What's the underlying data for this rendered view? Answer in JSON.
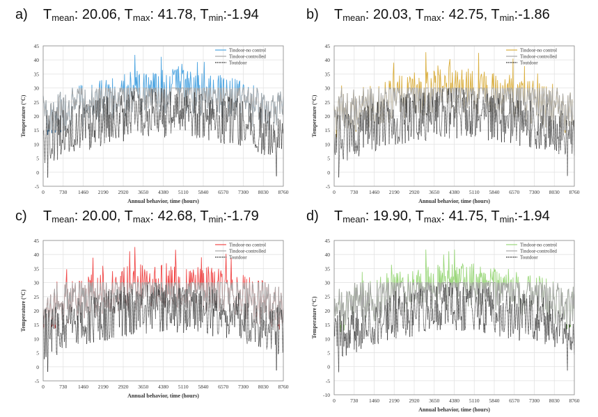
{
  "charts": [
    {
      "label": "a)",
      "stats": {
        "mean_label": "T",
        "mean_sub": "mean",
        "mean_value": ": 20.06, ",
        "max_label": "T",
        "max_sub": "max",
        "max_value": ": 41.78, ",
        "min_label": "T",
        "min_sub": "min",
        "min_value": ":-1.94"
      },
      "colors": {
        "no_control": "#4aa3e0",
        "controlled": "#a6a6a6",
        "outdoor": "#222222",
        "low_fill": "#1f4e79"
      }
    },
    {
      "label": "b)",
      "stats": {
        "mean_label": "T",
        "mean_sub": "mean",
        "mean_value": ": 20.03, ",
        "max_label": "T",
        "max_sub": "max",
        "max_value": ": 42.75, ",
        "min_label": "T",
        "min_sub": "min",
        "min_value": ":-1.86"
      },
      "colors": {
        "no_control": "#d9ad3c",
        "controlled": "#a6a6a6",
        "outdoor": "#222222",
        "low_fill": "#8a6d1c"
      }
    },
    {
      "label": "c)",
      "stats": {
        "mean_label": "T",
        "mean_sub": "mean",
        "mean_value": ": 20.00, ",
        "max_label": "T",
        "max_sub": "max",
        "max_value": ": 42.68, ",
        "min_label": "T",
        "min_sub": "min",
        "min_value": ":-1.79"
      },
      "colors": {
        "no_control": "#f04848",
        "controlled": "#a6a6a6",
        "outdoor": "#222222",
        "low_fill": "#8b1a1a"
      }
    },
    {
      "label": "d)",
      "stats": {
        "mean_label": "T",
        "mean_sub": "mean",
        "mean_value": ": 19.90, ",
        "max_label": "T",
        "max_sub": "max",
        "max_value": ": 41.75, ",
        "min_label": "T",
        "min_sub": "min",
        "min_value": ":-1.94"
      },
      "colors": {
        "no_control": "#9ad77a",
        "controlled": "#a6a6a6",
        "outdoor": "#222222",
        "low_fill": "#3e7a1e"
      }
    }
  ],
  "chart_data": [
    {
      "type": "line",
      "xlabel": "Annual behavior, time (hours)",
      "ylabel": "Temperature (°C)",
      "xlim": [
        0,
        8760
      ],
      "ylim": [
        -5,
        45
      ],
      "x_ticks": [
        "0",
        "730",
        "1460",
        "2190",
        "2920",
        "3650",
        "4380",
        "5110",
        "5840",
        "6570",
        "7300",
        "8030",
        "8760"
      ],
      "y_ticks": [
        "-5",
        "0",
        "5",
        "10",
        "15",
        "20",
        "25",
        "30",
        "35",
        "40",
        "45"
      ],
      "series": [
        {
          "name": "Tindoor-no control",
          "mean": 20.06,
          "max": 41.78,
          "min": -1.94
        },
        {
          "name": "Tindoor-controlled",
          "range": [
            15,
            30
          ]
        },
        {
          "name": "Toutdoor"
        }
      ]
    },
    {
      "type": "line",
      "xlabel": "Annual behavior, time (hours)",
      "ylabel": "Temperature (°C)",
      "xlim": [
        0,
        8760
      ],
      "ylim": [
        -5,
        45
      ],
      "x_ticks": [
        "0",
        "730",
        "1460",
        "2190",
        "2920",
        "3650",
        "4380",
        "5110",
        "5840",
        "6570",
        "7300",
        "8030",
        "8760"
      ],
      "y_ticks": [
        "-5",
        "0",
        "5",
        "10",
        "15",
        "20",
        "25",
        "30",
        "35",
        "40",
        "45"
      ],
      "series": [
        {
          "name": "Tindoor-no control",
          "mean": 20.03,
          "max": 42.75,
          "min": -1.86
        },
        {
          "name": "Tindoor-controlled",
          "range": [
            15,
            30
          ]
        },
        {
          "name": "Toutdoor"
        }
      ]
    },
    {
      "type": "line",
      "xlabel": "Annual behavior, time (hours)",
      "ylabel": "Temperature (°C)",
      "xlim": [
        0,
        8760
      ],
      "ylim": [
        -5,
        45
      ],
      "x_ticks": [
        "0",
        "730",
        "1460",
        "2190",
        "2920",
        "3650",
        "4380",
        "5110",
        "5840",
        "6570",
        "7300",
        "8030",
        "8760"
      ],
      "y_ticks": [
        "-5",
        "0",
        "5",
        "10",
        "15",
        "20",
        "25",
        "30",
        "35",
        "40",
        "45"
      ],
      "series": [
        {
          "name": "Tindoor-no control",
          "mean": 20.0,
          "max": 42.68,
          "min": -1.79
        },
        {
          "name": "Tindoor-controlled",
          "range": [
            15,
            30
          ]
        },
        {
          "name": "Toutdoor"
        }
      ]
    },
    {
      "type": "line",
      "xlabel": "Annual behavior, time (hours)",
      "ylabel": "Temperature (°C)",
      "xlim": [
        0,
        8760
      ],
      "ylim": [
        -10,
        45
      ],
      "x_ticks": [
        "0",
        "730",
        "1460",
        "2190",
        "2920",
        "3650",
        "4380",
        "5110",
        "5840",
        "6570",
        "7300",
        "8030",
        "8760"
      ],
      "y_ticks": [
        "-10",
        "-5",
        "0",
        "5",
        "10",
        "15",
        "20",
        "25",
        "30",
        "35",
        "40",
        "45"
      ],
      "series": [
        {
          "name": "Tindoor-no control",
          "mean": 19.9,
          "max": 41.75,
          "min": -1.94
        },
        {
          "name": "Tindoor-controlled",
          "range": [
            15,
            30
          ]
        },
        {
          "name": "Toutdoor"
        }
      ]
    }
  ]
}
